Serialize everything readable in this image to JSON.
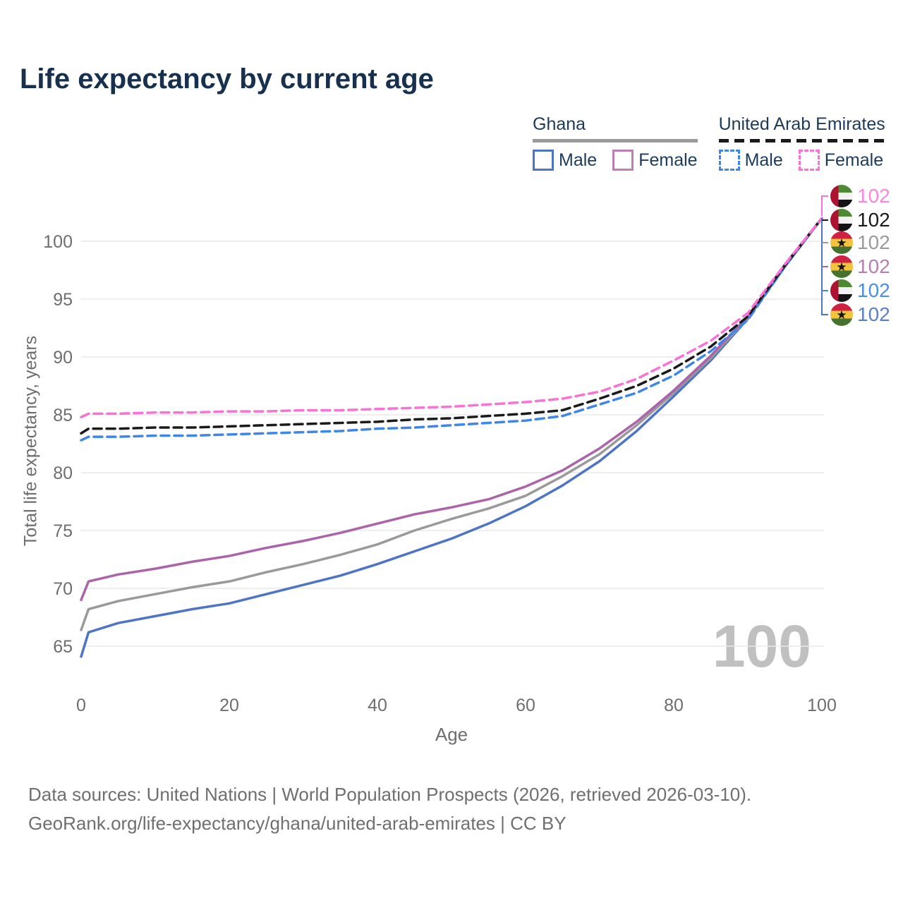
{
  "header": {
    "title": "Life expectancy by current age"
  },
  "legend": {
    "groups": [
      {
        "label": "Ghana",
        "line_style": "solid",
        "underline_color": "#9a9a9a",
        "items": [
          {
            "label": "Male",
            "color": "#4d74c5"
          },
          {
            "label": "Female",
            "color": "#bb7fb5"
          }
        ]
      },
      {
        "label": "United Arab Emirates",
        "line_style": "dashed",
        "underline_color": "#1a1a1a",
        "items": [
          {
            "label": "Male",
            "color": "#3f86ea"
          },
          {
            "label": "Female",
            "color": "#fb6fd8"
          }
        ]
      }
    ]
  },
  "chart_data": {
    "type": "line",
    "title": "Life expectancy by current age",
    "xlabel": "Age",
    "ylabel": "Total life expectancy, years",
    "watermark": "100",
    "grid": "horizontal",
    "legend_position": "top-right",
    "xticks": [
      0,
      20,
      40,
      60,
      80,
      100
    ],
    "yticks": [
      65,
      70,
      75,
      80,
      85,
      90,
      95,
      100
    ],
    "xlim": [
      0,
      100
    ],
    "ylim": [
      63,
      103.5
    ],
    "x": [
      0,
      1,
      5,
      10,
      15,
      20,
      25,
      30,
      35,
      40,
      45,
      50,
      55,
      60,
      65,
      70,
      75,
      80,
      85,
      90,
      95,
      100
    ],
    "series": [
      {
        "name": "Ghana — Male",
        "country": "Ghana",
        "sex": "male",
        "color": "#4d74c5",
        "dash": false,
        "values": [
          64.1,
          66.2,
          67.0,
          67.6,
          68.2,
          68.7,
          69.5,
          70.3,
          71.1,
          72.1,
          73.2,
          74.3,
          75.6,
          77.1,
          78.9,
          81.0,
          83.6,
          86.6,
          89.7,
          93.3,
          97.8,
          102
        ]
      },
      {
        "name": "Ghana — Total",
        "country": "Ghana",
        "sex": "both",
        "color": "#9a9a9a",
        "dash": false,
        "values": [
          66.4,
          68.2,
          68.9,
          69.5,
          70.1,
          70.6,
          71.4,
          72.1,
          72.9,
          73.8,
          75.0,
          76.0,
          76.9,
          78.0,
          79.7,
          81.6,
          84.1,
          86.9,
          89.9,
          93.4,
          97.9,
          102
        ]
      },
      {
        "name": "Ghana — Female",
        "country": "Ghana",
        "sex": "female",
        "color": "#ac63a9",
        "dash": false,
        "values": [
          69.0,
          70.6,
          71.2,
          71.7,
          72.3,
          72.8,
          73.5,
          74.1,
          74.8,
          75.6,
          76.4,
          77.0,
          77.7,
          78.8,
          80.2,
          82.1,
          84.4,
          87.1,
          90.1,
          93.5,
          98.0,
          102
        ]
      },
      {
        "name": "United Arab Emirates — Male",
        "country": "United Arab Emirates",
        "sex": "male",
        "color": "#3f86ea",
        "dash": true,
        "values": [
          82.8,
          83.1,
          83.1,
          83.2,
          83.2,
          83.3,
          83.4,
          83.5,
          83.6,
          83.8,
          83.9,
          84.1,
          84.3,
          84.5,
          84.9,
          85.9,
          86.9,
          88.4,
          90.5,
          93.2,
          97.8,
          102
        ]
      },
      {
        "name": "United Arab Emirates — Total",
        "country": "United Arab Emirates",
        "sex": "both",
        "color": "#1a1a1a",
        "dash": true,
        "values": [
          83.4,
          83.8,
          83.8,
          83.9,
          83.9,
          84.0,
          84.1,
          84.2,
          84.3,
          84.4,
          84.6,
          84.7,
          84.9,
          85.1,
          85.4,
          86.4,
          87.5,
          89.0,
          90.9,
          93.5,
          97.9,
          102
        ]
      },
      {
        "name": "United Arab Emirates — Female",
        "country": "United Arab Emirates",
        "sex": "female",
        "color": "#f973d6",
        "dash": true,
        "values": [
          84.8,
          85.1,
          85.1,
          85.2,
          85.2,
          85.3,
          85.3,
          85.4,
          85.4,
          85.5,
          85.6,
          85.7,
          85.9,
          86.1,
          86.4,
          87.0,
          88.1,
          89.7,
          91.4,
          93.8,
          98.0,
          102
        ]
      }
    ],
    "end_rows": [
      {
        "flag": "uae",
        "value": "102",
        "text_color": "#fd85dc",
        "line_color": "#f973d6"
      },
      {
        "flag": "uae",
        "value": "102",
        "text_color": "#1a1a1a",
        "line_color": "#1a1a1a"
      },
      {
        "flag": "ghana",
        "value": "102",
        "text_color": "#9a9a9a",
        "line_color": "#9a9a9a"
      },
      {
        "flag": "ghana",
        "value": "102",
        "text_color": "#b57fb2",
        "line_color": "#ac63a9"
      },
      {
        "flag": "uae",
        "value": "102",
        "text_color": "#4b8ee8",
        "line_color": "#3f86ea"
      },
      {
        "flag": "ghana",
        "value": "102",
        "text_color": "#5b82c9",
        "line_color": "#4d74c5"
      }
    ]
  },
  "footer": {
    "line1": "Data sources: United Nations | World Population Prospects (2026, retrieved 2026-03-10).",
    "line2": "GeoRank.org/life-expectancy/ghana/united-arab-emirates | CC BY"
  }
}
